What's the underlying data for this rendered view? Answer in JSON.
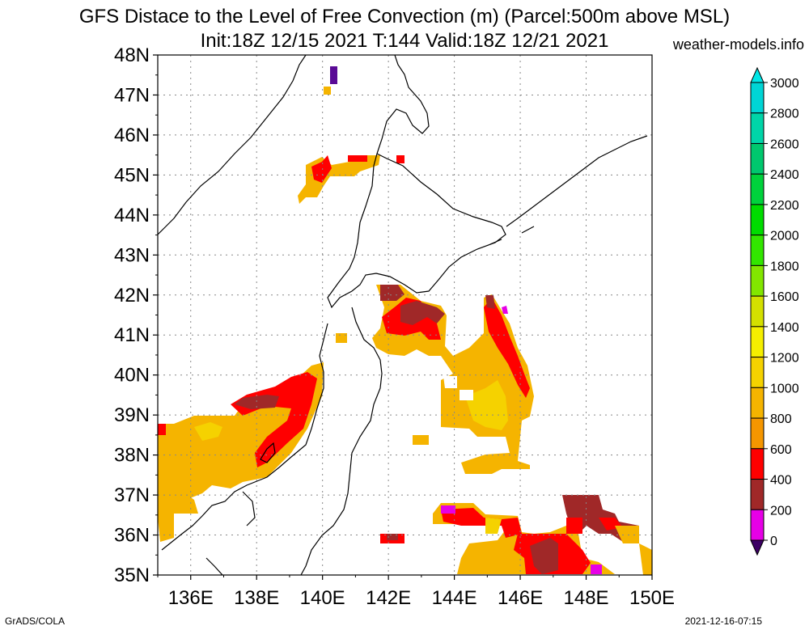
{
  "title_line1": "GFS Distace to the Level of Free Convection (m) (Parcel:500m above MSL)",
  "title_line2": "Init:18Z 12/15 2021 T:144 Valid:18Z 12/21 2021",
  "credit": "weather-models.info",
  "footer_left": "GrADS/COLA",
  "footer_right": "2021-12-16-07:15",
  "map": {
    "lon_range": [
      135,
      150
    ],
    "lat_range": [
      35,
      48
    ],
    "lat_labels": [
      "48N",
      "47N",
      "46N",
      "45N",
      "44N",
      "43N",
      "42N",
      "41N",
      "40N",
      "39N",
      "38N",
      "37N",
      "36N",
      "35N"
    ],
    "lon_labels": [
      "136E",
      "138E",
      "140E",
      "142E",
      "144E",
      "146E",
      "148E",
      "150E"
    ]
  },
  "colorbar": {
    "labels": [
      "3000",
      "2800",
      "2600",
      "2400",
      "2200",
      "2000",
      "1800",
      "1600",
      "1400",
      "1200",
      "1000",
      "800",
      "600",
      "400",
      "200",
      "0"
    ],
    "colors": [
      "#00d5d5",
      "#00d5a8",
      "#00c86e",
      "#00d23c",
      "#00dc00",
      "#32e600",
      "#82e600",
      "#d4e000",
      "#f5ef00",
      "#f5d200",
      "#f5b400",
      "#f59600",
      "#ff0000",
      "#a02828",
      "#e600e6",
      "#5a0a96"
    ],
    "top_color": "#00e6e6",
    "bottom_color": "#3c0064"
  }
}
